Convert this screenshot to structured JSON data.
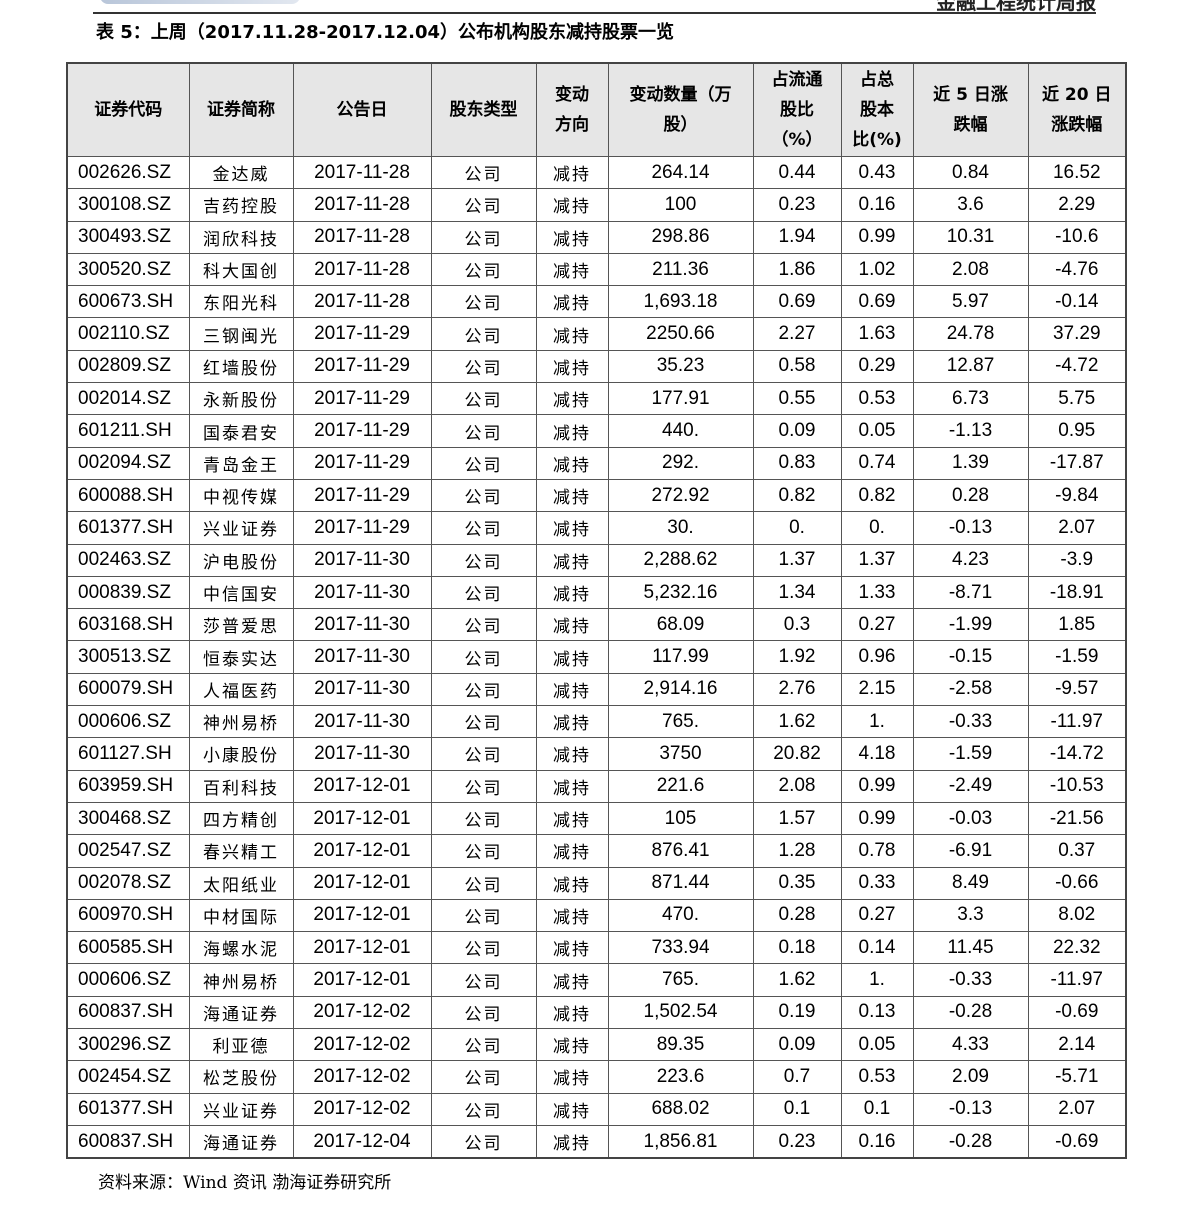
{
  "page_header": {
    "report_name": "金融工程统计周报"
  },
  "caption": "表 5：上周（2017.11.28-2017.12.04）公布机构股东减持股票一览",
  "table": {
    "columns": [
      "证券代码",
      "证券简称",
      "公告日",
      "股东类型",
      "变动方向",
      "变动数量（万股）",
      "占流通股比（%）",
      "占总股本比(%)",
      "近5日涨跌幅",
      "近20日涨跌幅"
    ],
    "rows": [
      [
        "002626.SZ",
        "金达威",
        "2017-11-28",
        "公司",
        "减持",
        "264.14",
        "0.44",
        "0.43",
        "0.84",
        "16.52"
      ],
      [
        "300108.SZ",
        "吉药控股",
        "2017-11-28",
        "公司",
        "减持",
        "100",
        "0.23",
        "0.16",
        "3.6",
        "2.29"
      ],
      [
        "300493.SZ",
        "润欣科技",
        "2017-11-28",
        "公司",
        "减持",
        "298.86",
        "1.94",
        "0.99",
        "10.31",
        "-10.6"
      ],
      [
        "300520.SZ",
        "科大国创",
        "2017-11-28",
        "公司",
        "减持",
        "211.36",
        "1.86",
        "1.02",
        "2.08",
        "-4.76"
      ],
      [
        "600673.SH",
        "东阳光科",
        "2017-11-28",
        "公司",
        "减持",
        "1,693.18",
        "0.69",
        "0.69",
        "5.97",
        "-0.14"
      ],
      [
        "002110.SZ",
        "三钢闽光",
        "2017-11-29",
        "公司",
        "减持",
        "2250.66",
        "2.27",
        "1.63",
        "24.78",
        "37.29"
      ],
      [
        "002809.SZ",
        "红墙股份",
        "2017-11-29",
        "公司",
        "减持",
        "35.23",
        "0.58",
        "0.29",
        "12.87",
        "-4.72"
      ],
      [
        "002014.SZ",
        "永新股份",
        "2017-11-29",
        "公司",
        "减持",
        "177.91",
        "0.55",
        "0.53",
        "6.73",
        "5.75"
      ],
      [
        "601211.SH",
        "国泰君安",
        "2017-11-29",
        "公司",
        "减持",
        "440.",
        "0.09",
        "0.05",
        "-1.13",
        "0.95"
      ],
      [
        "002094.SZ",
        "青岛金王",
        "2017-11-29",
        "公司",
        "减持",
        "292.",
        "0.83",
        "0.74",
        "1.39",
        "-17.87"
      ],
      [
        "600088.SH",
        "中视传媒",
        "2017-11-29",
        "公司",
        "减持",
        "272.92",
        "0.82",
        "0.82",
        "0.28",
        "-9.84"
      ],
      [
        "601377.SH",
        "兴业证券",
        "2017-11-29",
        "公司",
        "减持",
        "30.",
        "0.",
        "0.",
        "-0.13",
        "2.07"
      ],
      [
        "002463.SZ",
        "沪电股份",
        "2017-11-30",
        "公司",
        "减持",
        "2,288.62",
        "1.37",
        "1.37",
        "4.23",
        "-3.9"
      ],
      [
        "000839.SZ",
        "中信国安",
        "2017-11-30",
        "公司",
        "减持",
        "5,232.16",
        "1.34",
        "1.33",
        "-8.71",
        "-18.91"
      ],
      [
        "603168.SH",
        "莎普爱思",
        "2017-11-30",
        "公司",
        "减持",
        "68.09",
        "0.3",
        "0.27",
        "-1.99",
        "1.85"
      ],
      [
        "300513.SZ",
        "恒泰实达",
        "2017-11-30",
        "公司",
        "减持",
        "117.99",
        "1.92",
        "0.96",
        "-0.15",
        "-1.59"
      ],
      [
        "600079.SH",
        "人福医药",
        "2017-11-30",
        "公司",
        "减持",
        "2,914.16",
        "2.76",
        "2.15",
        "-2.58",
        "-9.57"
      ],
      [
        "000606.SZ",
        "神州易桥",
        "2017-11-30",
        "公司",
        "减持",
        "765.",
        "1.62",
        "1.",
        "-0.33",
        "-11.97"
      ],
      [
        "601127.SH",
        "小康股份",
        "2017-11-30",
        "公司",
        "减持",
        "3750",
        "20.82",
        "4.18",
        "-1.59",
        "-14.72"
      ],
      [
        "603959.SH",
        "百利科技",
        "2017-12-01",
        "公司",
        "减持",
        "221.6",
        "2.08",
        "0.99",
        "-2.49",
        "-10.53"
      ],
      [
        "300468.SZ",
        "四方精创",
        "2017-12-01",
        "公司",
        "减持",
        "105",
        "1.57",
        "0.99",
        "-0.03",
        "-21.56"
      ],
      [
        "002547.SZ",
        "春兴精工",
        "2017-12-01",
        "公司",
        "减持",
        "876.41",
        "1.28",
        "0.78",
        "-6.91",
        "0.37"
      ],
      [
        "002078.SZ",
        "太阳纸业",
        "2017-12-01",
        "公司",
        "减持",
        "871.44",
        "0.35",
        "0.33",
        "8.49",
        "-0.66"
      ],
      [
        "600970.SH",
        "中材国际",
        "2017-12-01",
        "公司",
        "减持",
        "470.",
        "0.28",
        "0.27",
        "3.3",
        "8.02"
      ],
      [
        "600585.SH",
        "海螺水泥",
        "2017-12-01",
        "公司",
        "减持",
        "733.94",
        "0.18",
        "0.14",
        "11.45",
        "22.32"
      ],
      [
        "000606.SZ",
        "神州易桥",
        "2017-12-01",
        "公司",
        "减持",
        "765.",
        "1.62",
        "1.",
        "-0.33",
        "-11.97"
      ],
      [
        "600837.SH",
        "海通证券",
        "2017-12-02",
        "公司",
        "减持",
        "1,502.54",
        "0.19",
        "0.13",
        "-0.28",
        "-0.69"
      ],
      [
        "300296.SZ",
        "利亚德",
        "2017-12-02",
        "公司",
        "减持",
        "89.35",
        "0.09",
        "0.05",
        "4.33",
        "2.14"
      ],
      [
        "002454.SZ",
        "松芝股份",
        "2017-12-02",
        "公司",
        "减持",
        "223.6",
        "0.7",
        "0.53",
        "2.09",
        "-5.71"
      ],
      [
        "601377.SH",
        "兴业证券",
        "2017-12-02",
        "公司",
        "减持",
        "688.02",
        "0.1",
        "0.1",
        "-0.13",
        "2.07"
      ],
      [
        "600837.SH",
        "海通证券",
        "2017-12-04",
        "公司",
        "减持",
        "1,856.81",
        "0.23",
        "0.16",
        "-0.28",
        "-0.69"
      ]
    ]
  },
  "source": "资料来源：Wind 资讯   渤海证券研究所"
}
